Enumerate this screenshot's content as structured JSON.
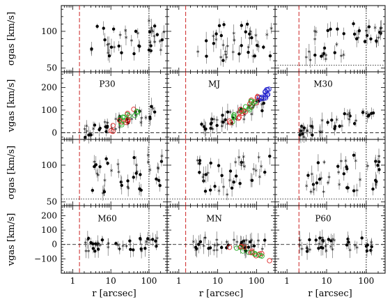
{
  "chart_data": {
    "type": "scatter",
    "grid": false,
    "xscale": "log",
    "xlim": [
      0.5,
      300
    ],
    "xticks": [
      1,
      10,
      100
    ],
    "xticklabels": [
      "1",
      "10",
      "100"
    ],
    "xlabel": "r [arcsec]",
    "ylabels": {
      "sigma": "σgas [km/s]",
      "v": "vgas [km/s]"
    },
    "rows": [
      {
        "kind": "sigma",
        "ylim": [
          45,
          135
        ],
        "yticks": [
          50,
          100
        ],
        "yticklabels": [
          "50",
          "100"
        ]
      },
      {
        "kind": "v",
        "ylim": [
          -30,
          270
        ],
        "yticks": [
          0,
          100,
          200
        ],
        "yticklabels": [
          "0",
          "100",
          "200"
        ]
      },
      {
        "kind": "sigma",
        "ylim": [
          45,
          135
        ],
        "yticks": [
          50,
          100
        ],
        "yticklabels": [
          "50",
          "100"
        ]
      },
      {
        "kind": "v",
        "ylim": [
          -200,
          270
        ],
        "yticks": [
          -100,
          0,
          100,
          200
        ],
        "yticklabels": [
          "−100",
          "0",
          "100",
          "200"
        ]
      }
    ],
    "panels": [
      {
        "row": 1,
        "col": 0,
        "label": "P30"
      },
      {
        "row": 1,
        "col": 1,
        "label": "MJ"
      },
      {
        "row": 1,
        "col": 2,
        "label": "M30"
      },
      {
        "row": 3,
        "col": 0,
        "label": "M60"
      },
      {
        "row": 3,
        "col": 1,
        "label": "MN"
      },
      {
        "row": 3,
        "col": 2,
        "label": "P60"
      }
    ],
    "red_dashed_r": [
      1.5,
      1.5,
      2.0
    ],
    "dotted_r": [
      100,
      300,
      100
    ],
    "sigma_dotted_level": [
      null,
      null,
      54
    ],
    "velocity_zero_level": 0
  }
}
